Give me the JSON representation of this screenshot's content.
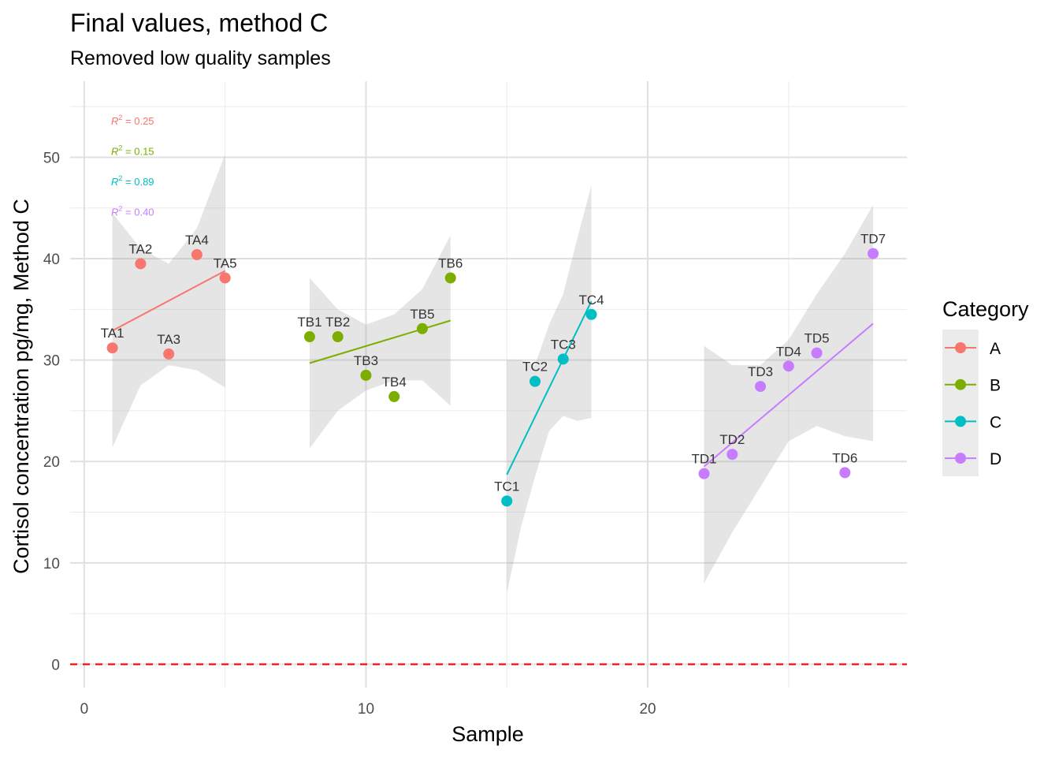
{
  "chart_data": {
    "type": "scatter",
    "title": "Final values, method C",
    "subtitle": "Removed low quality samples",
    "xlabel": "Sample",
    "ylabel": "Cortisol concentration pg/mg, Method C",
    "xlim": [
      -0.5,
      29.2
    ],
    "ylim": [
      -2.3,
      57.5
    ],
    "x_ticks": [
      0,
      10,
      20
    ],
    "y_ticks": [
      0,
      10,
      20,
      30,
      40,
      50
    ],
    "grid": true,
    "reference_line": {
      "y": 0,
      "style": "dashed",
      "color": "#ff0000"
    },
    "legend": {
      "title": "Category",
      "position": "right"
    },
    "series": [
      {
        "name": "A",
        "color": "#F8766D",
        "points": [
          {
            "label": "TA1",
            "x": 1,
            "y": 31.2
          },
          {
            "label": "TA2",
            "x": 2,
            "y": 39.5
          },
          {
            "label": "TA3",
            "x": 3,
            "y": 30.6
          },
          {
            "label": "TA4",
            "x": 4,
            "y": 40.4
          },
          {
            "label": "TA5",
            "x": 5,
            "y": 38.1
          }
        ],
        "fit": {
          "x": [
            1,
            5
          ],
          "y": [
            32.9,
            38.8
          ]
        },
        "band": {
          "x": [
            1,
            2,
            3,
            4,
            5
          ],
          "upper": [
            44.5,
            41.0,
            39.5,
            43.0,
            50.3
          ],
          "lower": [
            21.4,
            27.5,
            29.5,
            29.0,
            27.3
          ]
        },
        "r2_text": "= 0.25"
      },
      {
        "name": "B",
        "color": "#7CAE00",
        "points": [
          {
            "label": "TB1",
            "x": 8,
            "y": 32.3
          },
          {
            "label": "TB2",
            "x": 9,
            "y": 32.3
          },
          {
            "label": "TB3",
            "x": 10,
            "y": 28.5
          },
          {
            "label": "TB4",
            "x": 11,
            "y": 26.4
          },
          {
            "label": "TB5",
            "x": 12,
            "y": 33.1
          },
          {
            "label": "TB6",
            "x": 13,
            "y": 38.1
          }
        ],
        "fit": {
          "x": [
            8,
            13
          ],
          "y": [
            29.7,
            33.9
          ]
        },
        "band": {
          "x": [
            8,
            9,
            10,
            11,
            12,
            13
          ],
          "upper": [
            38.1,
            35.0,
            33.5,
            34.5,
            37.0,
            42.3
          ],
          "lower": [
            21.3,
            25.0,
            27.0,
            28.0,
            28.0,
            25.5
          ]
        },
        "r2_text": "= 0.15"
      },
      {
        "name": "C",
        "color": "#00BFC4",
        "points": [
          {
            "label": "TC1",
            "x": 15,
            "y": 16.1
          },
          {
            "label": "TC2",
            "x": 16,
            "y": 27.9
          },
          {
            "label": "TC3",
            "x": 17,
            "y": 30.1
          },
          {
            "label": "TC4",
            "x": 18,
            "y": 34.5
          }
        ],
        "fit": {
          "x": [
            15,
            18
          ],
          "y": [
            18.7,
            35.8
          ]
        },
        "band": {
          "x": [
            15,
            15.5,
            16,
            16.5,
            17,
            17.5,
            18
          ],
          "upper": [
            30.0,
            30.0,
            29.5,
            33.5,
            36.5,
            42.0,
            47.2
          ],
          "lower": [
            7.0,
            13.5,
            18.5,
            23.0,
            24.5,
            24.0,
            24.3
          ]
        },
        "r2_text": "= 0.89"
      },
      {
        "name": "D",
        "color": "#C77CFF",
        "points": [
          {
            "label": "TD1",
            "x": 22,
            "y": 18.8
          },
          {
            "label": "TD2",
            "x": 23,
            "y": 20.7
          },
          {
            "label": "TD3",
            "x": 24,
            "y": 27.4
          },
          {
            "label": "TD4",
            "x": 25,
            "y": 29.4
          },
          {
            "label": "TD5",
            "x": 26,
            "y": 30.7
          },
          {
            "label": "TD6",
            "x": 27,
            "y": 18.9
          },
          {
            "label": "TD7",
            "x": 28,
            "y": 40.5
          }
        ],
        "fit": {
          "x": [
            22,
            28
          ],
          "y": [
            19.5,
            33.6
          ]
        },
        "band": {
          "x": [
            22,
            23,
            24,
            25,
            26,
            27,
            28
          ],
          "upper": [
            31.4,
            29.5,
            29.5,
            32.0,
            36.5,
            40.5,
            45.3
          ],
          "lower": [
            8.0,
            13.0,
            17.5,
            22.0,
            23.5,
            22.5,
            22.0
          ]
        },
        "r2_text": "= 0.40"
      }
    ]
  }
}
